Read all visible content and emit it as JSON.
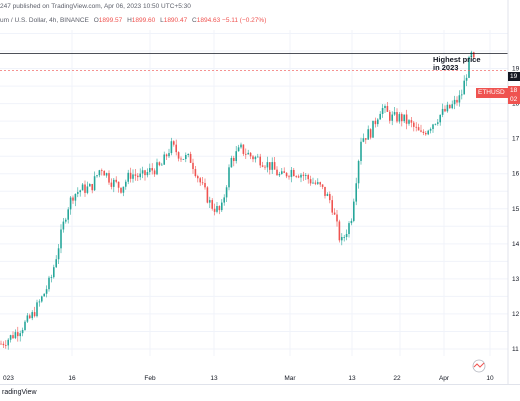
{
  "header": {
    "published_line": "247 published on TradingView.com, Apr 06, 2023 10:50 UTC+5:30",
    "symbol_line": "um / U.S. Dollar, 4h, BINANCE",
    "o_label": "O",
    "o_value": "1899.57",
    "h_label": "H",
    "h_value": "1899.60",
    "l_label": "L",
    "l_value": "1890.47",
    "c_label": "C",
    "c_value": "1894.63",
    "change": "−5.11 (−0.27%)"
  },
  "annotation": {
    "line1": "Highest price",
    "line2": "in 2023"
  },
  "price_tags": {
    "symbol": "ETHUSD",
    "top_value": "19",
    "current_top": "18",
    "current_bottom": "02"
  },
  "x_axis_labels": [
    "023",
    "16",
    "Feb",
    "13",
    "Mar",
    "13",
    "22",
    "Apr",
    "10"
  ],
  "footer": {
    "brand": "radingView"
  },
  "colors": {
    "up": "#26a69a",
    "down": "#ef5350",
    "grid": "#f0f3fa",
    "line": "#131722"
  },
  "chart_data": {
    "type": "candlestick",
    "title": "",
    "xlabel": "",
    "ylabel": "",
    "x_ticks": [
      "023",
      "16",
      "Feb",
      "13",
      "Mar",
      "13",
      "22",
      "Apr",
      "10"
    ],
    "y_tick_fragments": [
      "19",
      "18",
      "17",
      "16",
      "15",
      "14",
      "13",
      "12",
      "11"
    ],
    "ylim": [
      1080,
      2010
    ],
    "highest_2023_level": 1943,
    "last_close": 1894.63,
    "price_path": [
      [
        0,
        1115
      ],
      [
        10,
        1135
      ],
      [
        20,
        1160
      ],
      [
        30,
        1190
      ],
      [
        40,
        1240
      ],
      [
        50,
        1300
      ],
      [
        58,
        1400
      ],
      [
        66,
        1500
      ],
      [
        72,
        1540
      ],
      [
        80,
        1555
      ],
      [
        90,
        1560
      ],
      [
        100,
        1620
      ],
      [
        110,
        1580
      ],
      [
        120,
        1560
      ],
      [
        130,
        1600
      ],
      [
        140,
        1590
      ],
      [
        150,
        1610
      ],
      [
        160,
        1620
      ],
      [
        170,
        1680
      ],
      [
        180,
        1650
      ],
      [
        190,
        1640
      ],
      [
        200,
        1570
      ],
      [
        210,
        1510
      ],
      [
        220,
        1490
      ],
      [
        230,
        1640
      ],
      [
        240,
        1670
      ],
      [
        250,
        1650
      ],
      [
        260,
        1640
      ],
      [
        270,
        1620
      ],
      [
        280,
        1590
      ],
      [
        290,
        1610
      ],
      [
        300,
        1600
      ],
      [
        310,
        1580
      ],
      [
        320,
        1560
      ],
      [
        330,
        1520
      ],
      [
        340,
        1400
      ],
      [
        350,
        1470
      ],
      [
        360,
        1700
      ],
      [
        370,
        1720
      ],
      [
        380,
        1790
      ],
      [
        390,
        1760
      ],
      [
        400,
        1760
      ],
      [
        410,
        1740
      ],
      [
        420,
        1710
      ],
      [
        430,
        1740
      ],
      [
        440,
        1770
      ],
      [
        450,
        1790
      ],
      [
        460,
        1820
      ],
      [
        470,
        1940
      ],
      [
        475,
        1900
      ]
    ]
  }
}
